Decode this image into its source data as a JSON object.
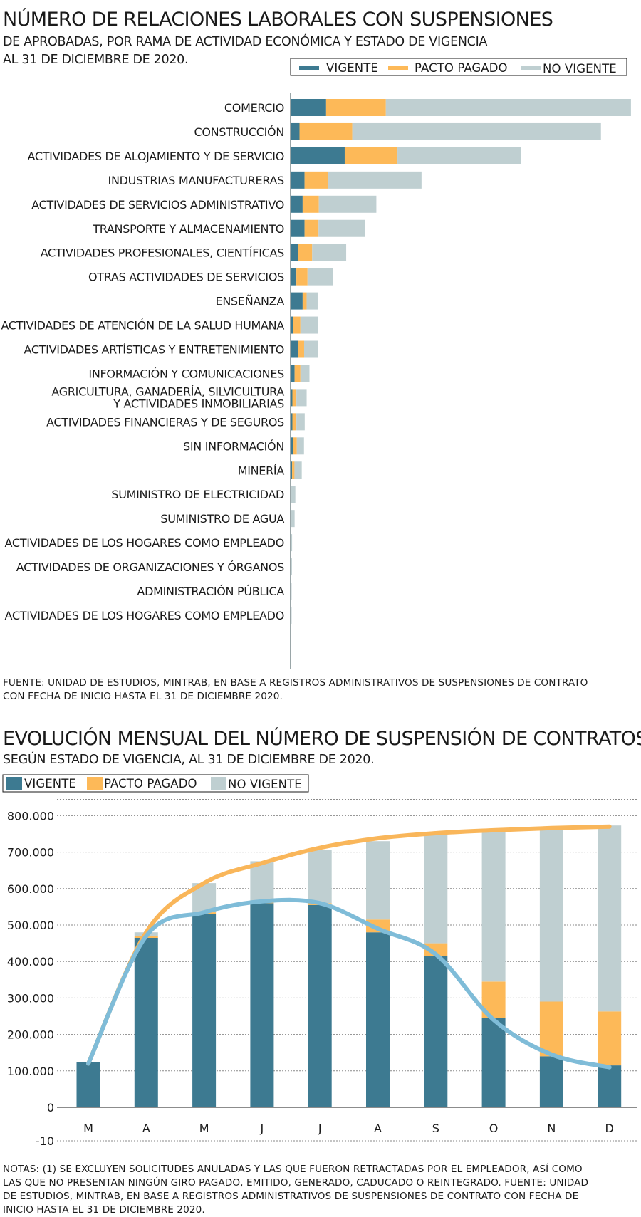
{
  "colors": {
    "vigente": "#3d7a91",
    "pacto": "#fdb958",
    "no_vigente": "#bfcfd1",
    "line_total": "#f9b65a",
    "line_vigente": "#7fbcd8",
    "grid": "#8a8a8a"
  },
  "chart1": {
    "title": "NÚMERO DE RELACIONES LABORALES CON SUSPENSIONES",
    "subtitle_line1": "DE APROBADAS, POR RAMA DE ACTIVIDAD ECONÓMICA Y  ESTADO DE VIGENCIA",
    "subtitle_line2": "AL 31 DE DICIEMBRE DE 2020.",
    "legend": [
      "VIGENTE",
      "PACTO PAGADO",
      "NO VIGENTE"
    ],
    "source_line1": "FUENTE: UNIDAD DE ESTUDIOS, MINTRAB, EN BASE A REGISTROS ADMINISTRATIVOS DE SUSPENSIONES DE CONTRATO",
    "source_line2": "CON FECHA DE INICIO HASTA EL 31 DE DICIEMBRE 2020."
  },
  "chart2": {
    "title": "EVOLUCIÓN MENSUAL DEL NÚMERO DE SUSPENSIÓN DE CONTRATOS",
    "subtitle": "SEGÚN ESTADO DE VIGENCIA, AL 31 DE DICIEMBRE DE 2020.",
    "legend": [
      "VIGENTE",
      "PACTO PAGADO",
      "NO VIGENTE"
    ],
    "notes_line1": "NOTAS: (1) SE EXCLUYEN SOLICITUDES ANULADAS Y LAS QUE FUERON RETRACTADAS POR EL EMPLEADOR, ASÍ COMO",
    "notes_line2": "LAS QUE NO PRESENTAN NINGÚN GIRO PAGADO, EMITIDO, GENERADO, CADUCADO O REINTEGRADO. FUENTE: UNIDAD",
    "notes_line3": "DE ESTUDIOS, MINTRAB, EN BASE A REGISTROS ADMINISTRATIVOS DE SUSPENSIONES DE CONTRATO CON FECHA DE",
    "notes_line4": "INICIO HASTA EL 31 DE DICIEMBRE 2020."
  },
  "chart_data": [
    {
      "type": "bar",
      "orientation": "horizontal",
      "stacked": true,
      "title": "NÚMERO DE RELACIONES LABORALES CON SUSPENSIONES",
      "categories": [
        "COMERCIO",
        "CONSTRUCCIÓN",
        "ACTIVIDADES DE ALOJAMIENTO Y DE SERVICIO",
        "INDUSTRIAS MANUFACTURERAS",
        "ACTIVIDADES DE SERVICIOS ADMINISTRATIVO",
        "TRANSPORTE Y ALMACENAMIENTO",
        "ACTIVIDADES PROFESIONALES, CIENTÍFICAS",
        "OTRAS ACTIVIDADES DE SERVICIOS",
        "ENSEÑANZA",
        "ACTIVIDADES DE ATENCIÓN DE LA SALUD HUMANA",
        "ACTIVIDADES ARTÍSTICAS Y ENTRETENIMIENTO",
        "INFORMACIÓN Y COMUNICACIONES",
        "AGRICULTURA, GANADERÍA, SILVICULTURA\nY ACTIVIDADES INMOBILIARIAS",
        "ACTIVIDADES FINANCIERAS Y DE SEGUROS",
        "SIN INFORMACIÓN",
        "MINERÍA",
        "SUMINISTRO DE ELECTRICIDAD",
        "SUMINISTRO DE AGUA",
        "ACTIVIDADES DE LOS HOGARES COMO EMPLEADO",
        "ACTIVIDADES DE ORGANIZACIONES Y ÓRGANOS",
        "ADMINISTRACIÓN PÚBLICA",
        "ACTIVIDADES DE LOS HOGARES COMO EMPLEADO"
      ],
      "series": [
        {
          "name": "VIGENTE",
          "values": [
            23900,
            6000,
            36400,
            9400,
            8100,
            9400,
            5100,
            3900,
            8100,
            1500,
            5100,
            2700,
            1200,
            1200,
            1500,
            1000,
            0,
            0,
            0,
            0,
            0,
            0
          ]
        },
        {
          "name": "PACTO PAGADO",
          "values": [
            40200,
            35500,
            35500,
            16000,
            10900,
            9400,
            9400,
            7500,
            2700,
            5100,
            4000,
            3900,
            2700,
            2700,
            2700,
            1600,
            0,
            0,
            0,
            0,
            0,
            0
          ]
        },
        {
          "name": "NO VIGENTE",
          "values": [
            164900,
            167300,
            83300,
            62700,
            38700,
            31500,
            22900,
            17000,
            7400,
            12000,
            9400,
            6100,
            6900,
            5600,
            4800,
            4900,
            3200,
            2700,
            1000,
            900,
            700,
            700
          ]
        }
      ],
      "xlim": [
        0,
        230000
      ]
    },
    {
      "type": "bar",
      "stacked": true,
      "title": "EVOLUCIÓN MENSUAL DEL NÚMERO DE SUSPENSIÓN DE CONTRATOS",
      "categories": [
        "M",
        "A",
        "M",
        "J",
        "J",
        "A",
        "S",
        "O",
        "N",
        "D"
      ],
      "series": [
        {
          "name": "VIGENTE",
          "values": [
            125000,
            465000,
            530000,
            560000,
            555000,
            480000,
            415000,
            245000,
            140000,
            115000
          ]
        },
        {
          "name": "PACTO PAGADO",
          "values": [
            0,
            5000,
            5000,
            5000,
            5000,
            35000,
            35000,
            100000,
            150000,
            148000
          ]
        },
        {
          "name": "NO VIGENTE",
          "values": [
            0,
            10000,
            80000,
            110000,
            145000,
            215000,
            300000,
            410000,
            470000,
            510000
          ]
        }
      ],
      "lines": [
        {
          "name": "total",
          "values": [
            120000,
            480000,
            615000,
            670000,
            712000,
            738000,
            752000,
            760000,
            766000,
            770000
          ]
        },
        {
          "name": "vigente",
          "values": [
            120000,
            470000,
            535000,
            565000,
            560000,
            490000,
            420000,
            240000,
            145000,
            110000
          ]
        }
      ],
      "y_ticks": [
        "800.000",
        "700.000",
        "600.000",
        "500.000",
        "400.000",
        "300.000",
        "200.000",
        "100.000",
        "0",
        "-10"
      ],
      "ylim": [
        -100000,
        850000
      ],
      "grid": "horizontal dashed"
    }
  ]
}
